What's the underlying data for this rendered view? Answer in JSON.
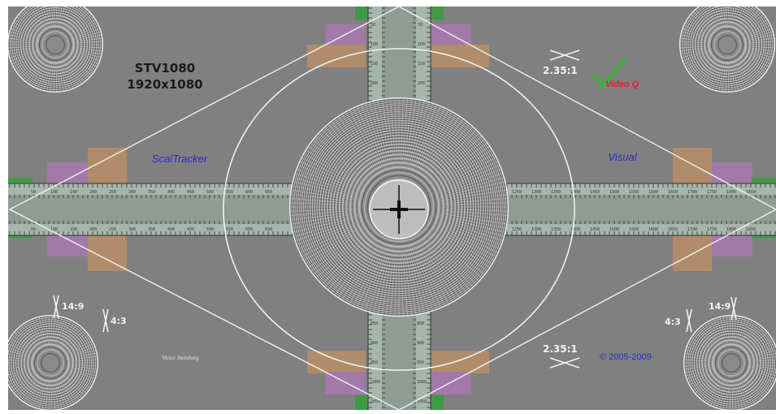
{
  "pattern": {
    "title_line1": "STV1080",
    "title_line2": "1920x1080",
    "left_label": "ScalTracker",
    "right_label": "Visual",
    "aspect_top_right": "2.35:1",
    "aspect_bottom_right": "2.35:1",
    "aspect_left_149": "14:9",
    "aspect_left_43": "4:3",
    "aspect_right_149": "14:9",
    "aspect_right_43": "4:3",
    "author_signature": "Victor Steinberg",
    "copyright": "© 2005-2009",
    "logo_text": "Video Q"
  },
  "scales": {
    "left_ticks": [
      "50",
      "100",
      "150",
      "200",
      "250",
      "300",
      "350",
      "400",
      "450",
      "500",
      "550",
      "600",
      "650"
    ],
    "right_ticks": [
      "1250",
      "1300",
      "1350",
      "1400",
      "1450",
      "1500",
      "1550",
      "1600",
      "1650",
      "1700",
      "1750",
      "1800",
      "1850"
    ],
    "top_ticks": [
      "50",
      "100",
      "150",
      "200",
      "250"
    ],
    "bottom_ticks": [
      "850",
      "900",
      "950",
      "1000",
      "1050"
    ]
  },
  "colors": {
    "background": "#808080",
    "frame_green": "#3f9a43",
    "purple_patch": "#a279a9",
    "orange_patch": "#b08c6a",
    "scale_strip": "#a7b6ac",
    "lines": "#f0f0f0",
    "blue_text": "#2a2acb",
    "logo_green": "#3ab13a",
    "logo_red": "#e2202a"
  }
}
